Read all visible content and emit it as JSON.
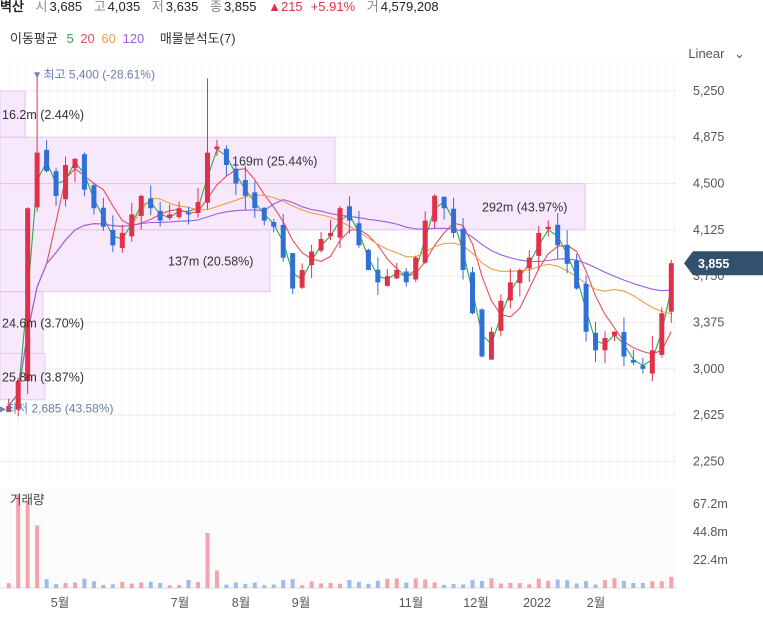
{
  "header": {
    "name": "벽산",
    "open_label": "시",
    "open": "3,685",
    "high_label": "고",
    "high": "4,035",
    "low_label": "저",
    "low": "3,635",
    "close_label": "종",
    "close": "3,855",
    "change": "▲215",
    "change_pct": "+5.91%",
    "volume_label": "거",
    "volume": "4,579,208"
  },
  "ma_legend": {
    "title": "이동평균",
    "items": [
      {
        "label": "5",
        "color": "#2eaa4a"
      },
      {
        "label": "20",
        "color": "#e8505b"
      },
      {
        "label": "60",
        "color": "#f39c4a"
      },
      {
        "label": "120",
        "color": "#9b5de5"
      }
    ],
    "profile_label": "매물분석도(7)"
  },
  "scale_mode": "Linear",
  "colors": {
    "up": "#e0314b",
    "down": "#2f6fd6",
    "profile": "#f6e5fb",
    "profile_border": "#e2c3ef"
  },
  "chart_data": {
    "type": "candlestick",
    "y_axis": {
      "ticks": [
        "5,250",
        "4,875",
        "4,500",
        "4,125",
        "3,750",
        "3,375",
        "3,000",
        "2,625",
        "2,250"
      ],
      "tick_values": [
        5250,
        4875,
        4500,
        4125,
        3750,
        3375,
        3000,
        2625,
        2250
      ],
      "range": [
        2100,
        5500
      ]
    },
    "current_price": {
      "value": 3855,
      "label": "3,855"
    },
    "x_labels": [
      "5월",
      "7월",
      "8월",
      "9월",
      "11월",
      "12월",
      "2022",
      "2월"
    ],
    "high_marker": {
      "label": "최고",
      "value_text": "5,400 (-28.61%)",
      "value": 5400
    },
    "low_marker": {
      "label": "최저",
      "value_text": "2,685 (43.58%)",
      "value": 2685
    },
    "volume_profile": [
      {
        "label": "16.2m (2.44%)",
        "low": 4875,
        "high": 5250
      },
      {
        "label": "169m (25.44%)",
        "low": 4500,
        "high": 4875
      },
      {
        "label": "292m (43.97%)",
        "low": 4125,
        "high": 4500
      },
      {
        "label": "137m (20.58%)",
        "low": 3625,
        "high": 4125
      },
      {
        "label": "24.6m (3.70%)",
        "low": 3125,
        "high": 3625
      },
      {
        "label": "25.8m (3.87%)",
        "low": 2750,
        "high": 3125
      }
    ],
    "volume_panel": {
      "title": "거래량",
      "ticks": [
        "67.2m",
        "44.8m",
        "22.4m"
      ],
      "tick_values": [
        67.2,
        44.8,
        22.4
      ],
      "max": 80
    },
    "close_series": [
      2700,
      2900,
      4300,
      4750,
      4600,
      4400,
      4650,
      4700,
      4450,
      4300,
      4150,
      4000,
      4100,
      4250,
      4400,
      4300,
      4200,
      4250,
      4300,
      4250,
      4350,
      4750,
      4800,
      4650,
      4500,
      4400,
      4300,
      4200,
      4150,
      3900,
      3650,
      3800,
      3950,
      4050,
      4100,
      4300,
      4200,
      4000,
      3800,
      3700,
      3750,
      3800,
      3700,
      3900,
      4200,
      4400,
      4300,
      4100,
      3800,
      3450,
      3100,
      3300,
      3550,
      3700,
      3800,
      3900,
      4100,
      4150,
      4000,
      3850,
      3650,
      3300,
      3150,
      3250,
      3300,
      3100,
      3050,
      3000,
      3150,
      3450,
      3855
    ]
  }
}
